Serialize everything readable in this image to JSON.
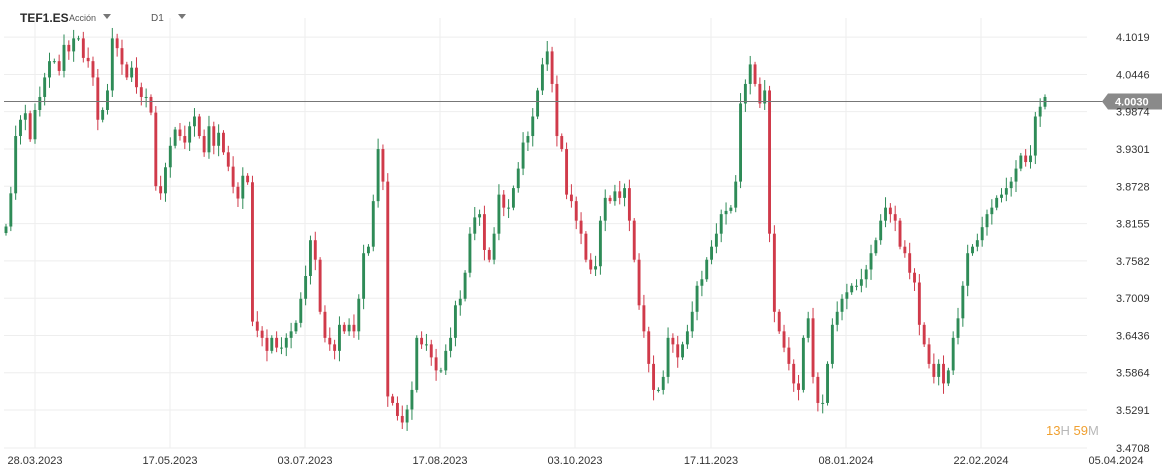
{
  "header": {
    "symbol": "TEF1.ES",
    "asset_type": "Acción",
    "timeframe": "D1"
  },
  "countdown": {
    "hours": "13",
    "hours_unit": "H",
    "minutes": "59",
    "minutes_unit": "M"
  },
  "colors": {
    "up": "#2e8b57",
    "down": "#d03a4a",
    "price_line": "#777777",
    "price_label_bg": "#8a8a8a",
    "grid": "#eeeeee"
  },
  "chart_data": {
    "type": "candlestick",
    "ylim": [
      3.4708,
      4.1313
    ],
    "y_ticks": [
      "4.1019",
      "4.0446",
      "3.9874",
      "3.9301",
      "3.8728",
      "3.8155",
      "3.7582",
      "3.7009",
      "3.6436",
      "3.5864",
      "3.5291",
      "3.4708"
    ],
    "x_ticks": [
      "28.03.2023",
      "17.05.2023",
      "03.07.2023",
      "17.08.2023",
      "03.10.2023",
      "17.11.2023",
      "08.01.2024",
      "22.02.2024",
      "05.04.2024"
    ],
    "current_price": "4.0030",
    "current_price_value": 4.003,
    "grid": true,
    "close": [
      3.811,
      3.862,
      3.95,
      3.975,
      3.985,
      3.945,
      3.99,
      4.01,
      4.04,
      4.065,
      4.065,
      4.05,
      4.09,
      4.08,
      4.1,
      4.1,
      4.07,
      4.065,
      4.04,
      3.975,
      3.99,
      4.02,
      4.1,
      4.085,
      4.06,
      4.04,
      4.055,
      4.025,
      4.01,
      4.01,
      3.986,
      3.873,
      3.862,
      3.902,
      3.935,
      3.96,
      3.95,
      3.94,
      3.965,
      3.98,
      3.95,
      3.925,
      3.965,
      3.935,
      3.955,
      3.925,
      3.903,
      3.872,
      3.854,
      3.889,
      3.879,
      3.665,
      3.651,
      3.64,
      3.62,
      3.64,
      3.625,
      3.625,
      3.64,
      3.65,
      3.663,
      3.7,
      3.735,
      3.79,
      3.76,
      3.68,
      3.64,
      3.63,
      3.62,
      3.66,
      3.65,
      3.66,
      3.65,
      3.7,
      3.77,
      3.78,
      3.85,
      3.93,
      3.88,
      3.55,
      3.54,
      3.52,
      3.51,
      3.53,
      3.56,
      3.64,
      3.63,
      3.63,
      3.61,
      3.59,
      3.59,
      3.62,
      3.64,
      3.69,
      3.7,
      3.74,
      3.8,
      3.825,
      3.83,
      3.775,
      3.76,
      3.8,
      3.86,
      3.84,
      3.84,
      3.87,
      3.9,
      3.94,
      3.95,
      3.98,
      4.02,
      4.06,
      4.08,
      4.03,
      3.95,
      3.93,
      3.86,
      3.85,
      3.82,
      3.8,
      3.76,
      3.745,
      3.75,
      3.82,
      3.855,
      3.85,
      3.865,
      3.855,
      3.87,
      3.82,
      3.76,
      3.69,
      3.65,
      3.6,
      3.56,
      3.56,
      3.58,
      3.64,
      3.63,
      3.61,
      3.63,
      3.65,
      3.68,
      3.72,
      3.73,
      3.76,
      3.78,
      3.8,
      3.83,
      3.835,
      3.84,
      3.88,
      4.0,
      4.03,
      4.06,
      4.03,
      4.0,
      4.02,
      3.8,
      3.68,
      3.65,
      3.625,
      3.6,
      3.57,
      3.56,
      3.64,
      3.67,
      3.58,
      3.54,
      3.54,
      3.6,
      3.66,
      3.68,
      3.7,
      3.71,
      3.72,
      3.72,
      3.73,
      3.745,
      3.77,
      3.79,
      3.82,
      3.84,
      3.83,
      3.82,
      3.78,
      3.77,
      3.74,
      3.725,
      3.66,
      3.63,
      3.6,
      3.58,
      3.6,
      3.57,
      3.59,
      3.64,
      3.67,
      3.72,
      3.77,
      3.78,
      3.79,
      3.81,
      3.83,
      3.84,
      3.855,
      3.86,
      3.87,
      3.88,
      3.9,
      3.92,
      3.91,
      3.92,
      3.98,
      3.995,
      4.01
    ]
  }
}
